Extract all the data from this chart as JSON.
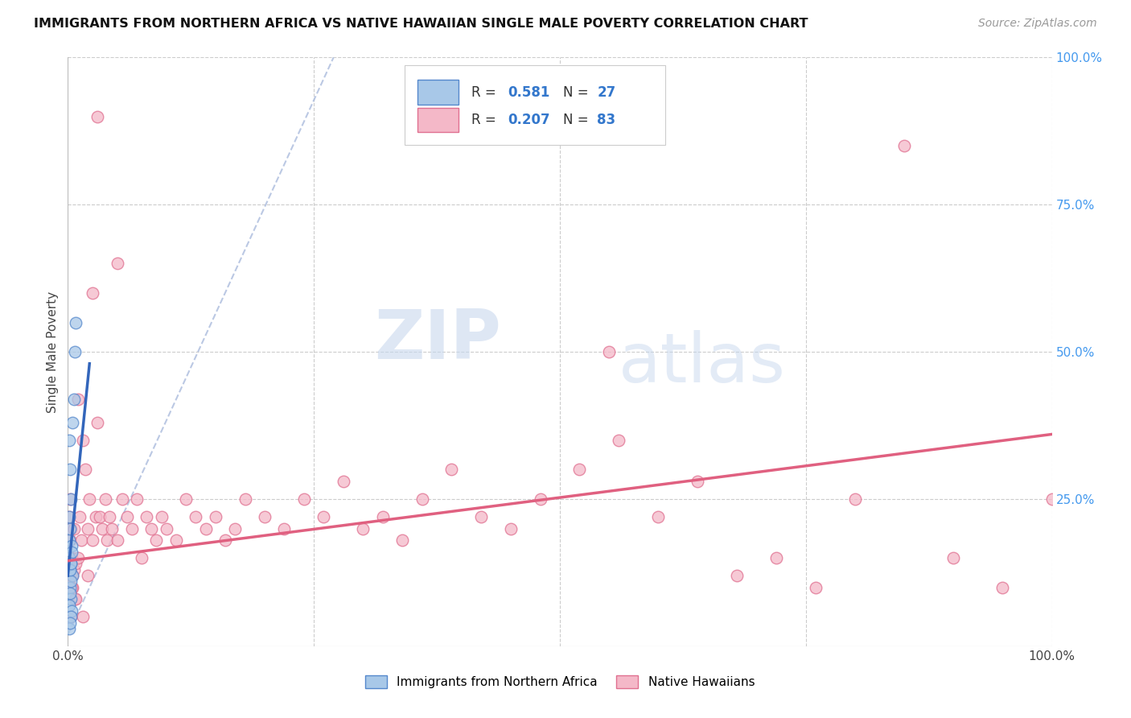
{
  "title": "IMMIGRANTS FROM NORTHERN AFRICA VS NATIVE HAWAIIAN SINGLE MALE POVERTY CORRELATION CHART",
  "source": "Source: ZipAtlas.com",
  "ylabel": "Single Male Poverty",
  "xlim": [
    0,
    1.0
  ],
  "ylim": [
    0,
    1.0
  ],
  "xtick_labels": [
    "0.0%",
    "",
    "",
    "",
    "100.0%"
  ],
  "xtick_positions": [
    0.0,
    0.25,
    0.5,
    0.75,
    1.0
  ],
  "right_ytick_labels": [
    "100.0%",
    "75.0%",
    "50.0%",
    "25.0%"
  ],
  "right_ytick_positions": [
    1.0,
    0.75,
    0.5,
    0.25
  ],
  "blue_R": "0.581",
  "blue_N": "27",
  "pink_R": "0.207",
  "pink_N": "83",
  "blue_color": "#a8c8e8",
  "pink_color": "#f4b8c8",
  "blue_edge_color": "#5588cc",
  "pink_edge_color": "#e07090",
  "blue_line_color": "#3366bb",
  "pink_line_color": "#e06080",
  "background_color": "#ffffff",
  "watermark_zip": "ZIP",
  "watermark_atlas": "atlas",
  "legend_label_blue": "Immigrants from Northern Africa",
  "legend_label_pink": "Native Hawaiians",
  "blue_scatter_x": [
    0.001,
    0.002,
    0.001,
    0.003,
    0.002,
    0.001,
    0.004,
    0.003,
    0.002,
    0.005,
    0.003,
    0.002,
    0.001,
    0.004,
    0.003,
    0.006,
    0.005,
    0.002,
    0.001,
    0.007,
    0.008,
    0.003,
    0.002,
    0.004,
    0.003,
    0.001,
    0.002
  ],
  "blue_scatter_y": [
    0.18,
    0.2,
    0.22,
    0.25,
    0.13,
    0.15,
    0.17,
    0.14,
    0.1,
    0.12,
    0.08,
    0.09,
    0.07,
    0.06,
    0.05,
    0.42,
    0.38,
    0.3,
    0.35,
    0.5,
    0.55,
    0.11,
    0.13,
    0.16,
    0.14,
    0.03,
    0.04
  ],
  "pink_scatter_x": [
    0.001,
    0.002,
    0.003,
    0.002,
    0.004,
    0.003,
    0.005,
    0.006,
    0.008,
    0.007,
    0.01,
    0.012,
    0.015,
    0.014,
    0.018,
    0.02,
    0.022,
    0.025,
    0.028,
    0.03,
    0.032,
    0.035,
    0.038,
    0.04,
    0.042,
    0.045,
    0.05,
    0.055,
    0.06,
    0.065,
    0.07,
    0.075,
    0.08,
    0.085,
    0.09,
    0.095,
    0.1,
    0.11,
    0.12,
    0.13,
    0.14,
    0.15,
    0.16,
    0.17,
    0.18,
    0.2,
    0.22,
    0.24,
    0.26,
    0.28,
    0.3,
    0.32,
    0.34,
    0.36,
    0.39,
    0.42,
    0.45,
    0.48,
    0.52,
    0.56,
    0.6,
    0.64,
    0.68,
    0.72,
    0.76,
    0.8,
    0.85,
    0.9,
    0.95,
    1.0,
    0.55,
    0.005,
    0.003,
    0.002,
    0.004,
    0.006,
    0.008,
    0.01,
    0.015,
    0.02,
    0.025,
    0.03,
    0.05
  ],
  "pink_scatter_y": [
    0.22,
    0.25,
    0.2,
    0.18,
    0.15,
    0.12,
    0.1,
    0.13,
    0.14,
    0.08,
    0.42,
    0.22,
    0.35,
    0.18,
    0.3,
    0.2,
    0.25,
    0.18,
    0.22,
    0.38,
    0.22,
    0.2,
    0.25,
    0.18,
    0.22,
    0.2,
    0.18,
    0.25,
    0.22,
    0.2,
    0.25,
    0.15,
    0.22,
    0.2,
    0.18,
    0.22,
    0.2,
    0.18,
    0.25,
    0.22,
    0.2,
    0.22,
    0.18,
    0.2,
    0.25,
    0.22,
    0.2,
    0.25,
    0.22,
    0.28,
    0.2,
    0.22,
    0.18,
    0.25,
    0.3,
    0.22,
    0.2,
    0.25,
    0.3,
    0.35,
    0.22,
    0.28,
    0.12,
    0.15,
    0.1,
    0.25,
    0.85,
    0.15,
    0.1,
    0.25,
    0.5,
    0.12,
    0.05,
    0.15,
    0.1,
    0.2,
    0.08,
    0.15,
    0.05,
    0.12,
    0.6,
    0.9,
    0.65
  ],
  "blue_trend_x": [
    0.0,
    0.022
  ],
  "blue_trend_y": [
    0.12,
    0.48
  ],
  "pink_trend_x": [
    0.0,
    1.0
  ],
  "pink_trend_y_start": 0.145,
  "pink_trend_y_end": 0.36,
  "diag_line_x": [
    0.0,
    0.27
  ],
  "diag_line_y": [
    0.02,
    1.0
  ]
}
